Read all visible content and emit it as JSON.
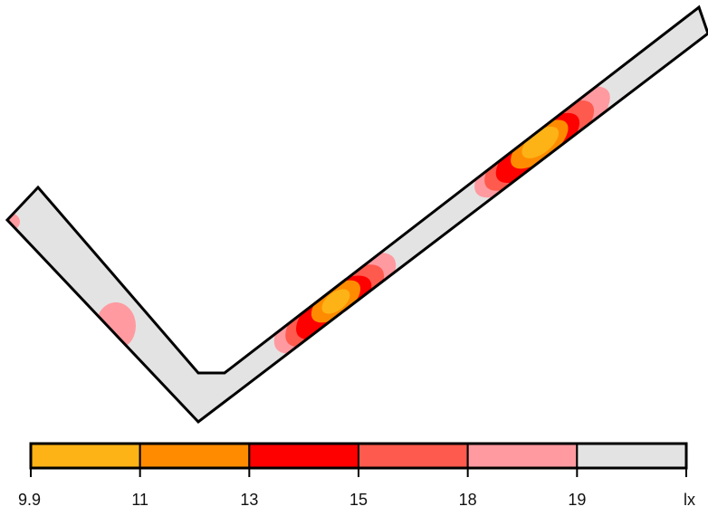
{
  "legend": {
    "ticks": [
      "9.9",
      "11",
      "13",
      "15",
      "18",
      "19",
      "lx"
    ],
    "bins": [
      {
        "color": "#FDB316"
      },
      {
        "color": "#FF8C00"
      },
      {
        "color": "#FF0000"
      },
      {
        "color": "#FF5A4E"
      },
      {
        "color": "#FF9AA0"
      },
      {
        "color": "#E3E3E3"
      }
    ]
  },
  "colors": {
    "corridor_fill": "#E3E3E3",
    "outline": "#000000"
  }
}
